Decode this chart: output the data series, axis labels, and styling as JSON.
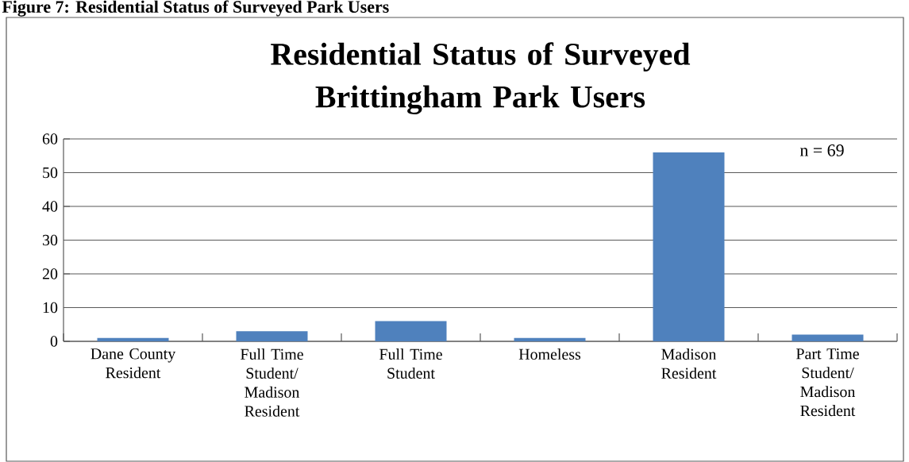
{
  "chart_data": {
    "type": "bar",
    "title": "Residential Status of Surveyed Brittingham Park Users",
    "categories": [
      "Dane County Resident",
      "Full Time Student/ Madison Resident",
      "Full Time Student",
      "Homeless",
      "Madison Resident",
      "Part Time Student/ Madison Resident"
    ],
    "values": [
      1,
      3,
      6,
      1,
      56,
      2
    ],
    "color": "#4f81bd",
    "ylim": [
      0,
      60
    ],
    "yticks": [
      0,
      10,
      20,
      30,
      40,
      50,
      60
    ],
    "grid": "y",
    "legend": false,
    "annotations": [
      "Figure 7: Residential Status of Surveyed Park Users",
      "n = 69"
    ]
  }
}
